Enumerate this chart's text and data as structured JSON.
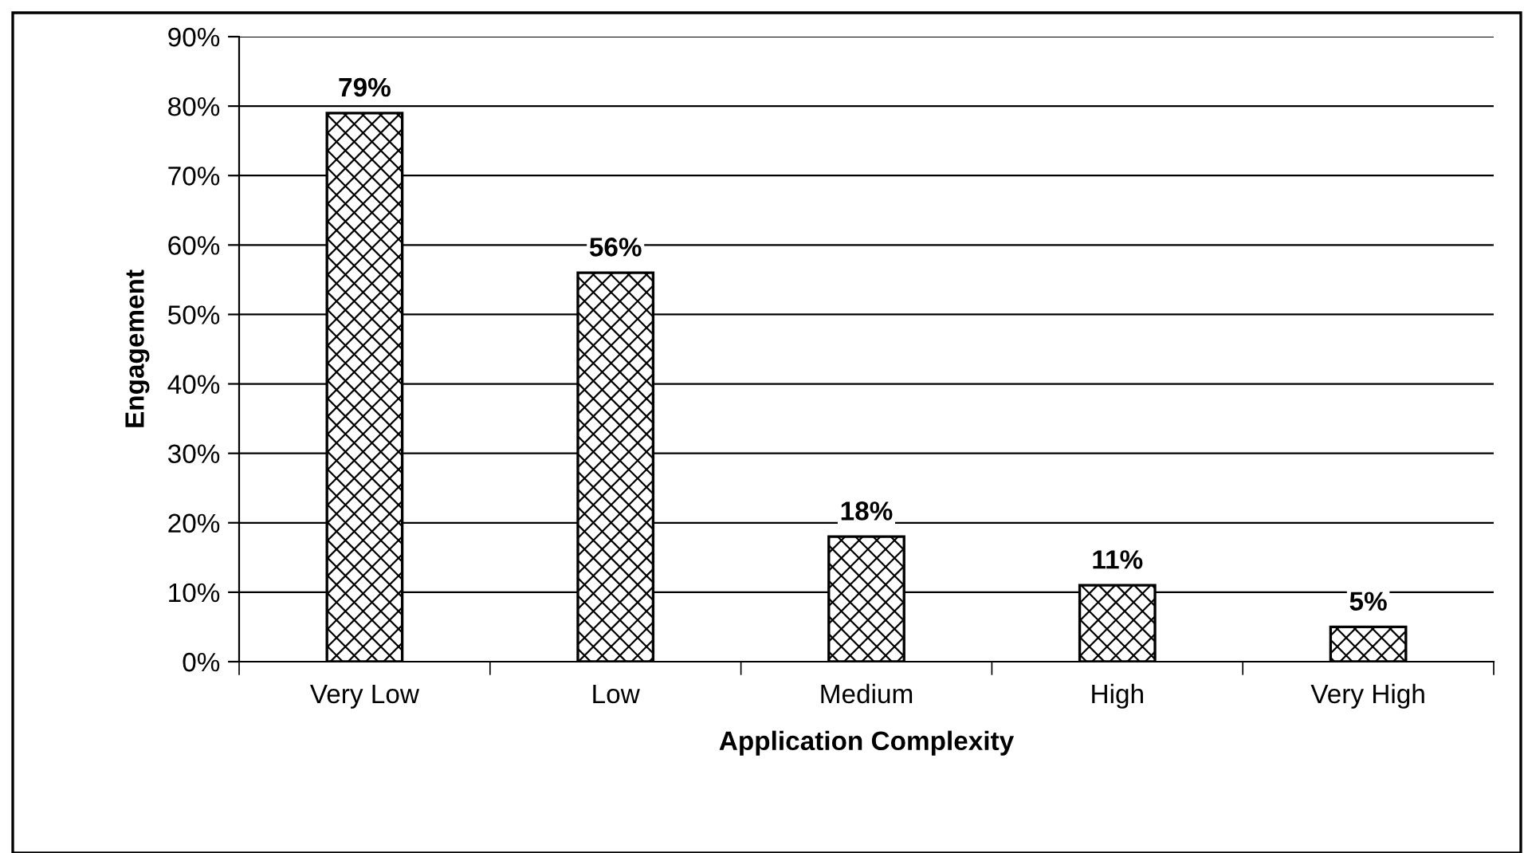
{
  "chart_data": {
    "type": "bar",
    "xlabel": "Application Complexity",
    "ylabel": "Engagement",
    "categories": [
      "Very Low",
      "Low",
      "Medium",
      "High",
      "Very High"
    ],
    "values": [
      79,
      56,
      18,
      11,
      5
    ],
    "value_labels": [
      "79%",
      "56%",
      "18%",
      "11%",
      "5%"
    ],
    "color": "#000000",
    "ylim": [
      0,
      90
    ],
    "yticks": [
      {
        "value": 0,
        "label": "0%"
      },
      {
        "value": 10,
        "label": "10%"
      },
      {
        "value": 20,
        "label": "20%"
      },
      {
        "value": 30,
        "label": "30%"
      },
      {
        "value": 40,
        "label": "40%"
      },
      {
        "value": 50,
        "label": "50%"
      },
      {
        "value": 60,
        "label": "60%"
      },
      {
        "value": 70,
        "label": "70%"
      },
      {
        "value": 80,
        "label": "80%"
      },
      {
        "value": 90,
        "label": "90%"
      }
    ],
    "grid": "y"
  }
}
